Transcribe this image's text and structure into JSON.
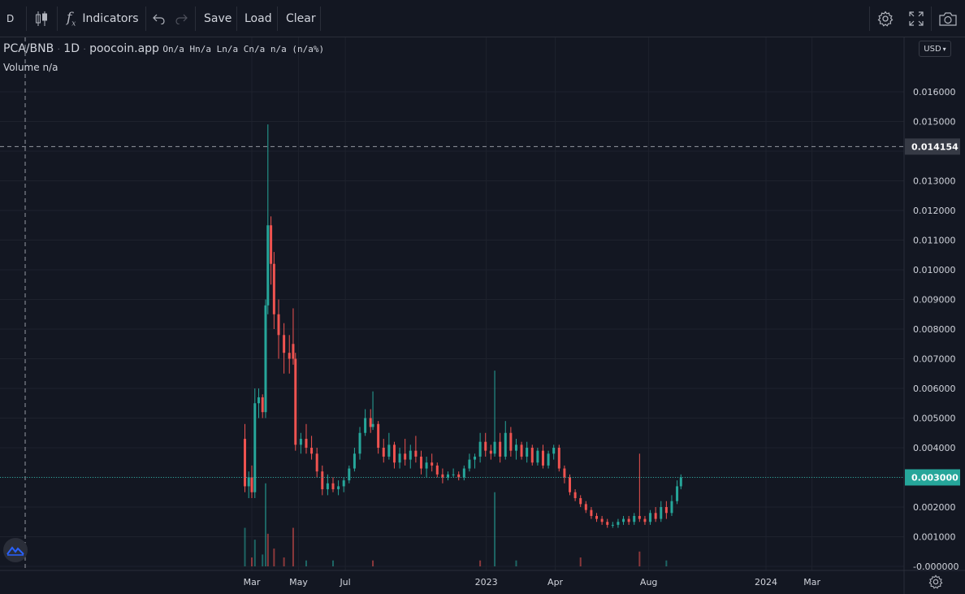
{
  "toolbar": {
    "interval": "D",
    "indicators_label": "Indicators",
    "save_label": "Save",
    "load_label": "Load",
    "clear_label": "Clear"
  },
  "legend": {
    "symbol": "PCA/BNB",
    "interval": "1D",
    "source": "poocoin.app",
    "ohlc": "On/a Hn/a Ln/a Cn/a n/a (n/a%)",
    "volume": "Volume n/a"
  },
  "currency": "USD",
  "crosshair_price": "0.014154",
  "last_price": "0.003000",
  "colors": {
    "background": "#131722",
    "grid": "#1e222d",
    "up": "#26a69a",
    "down": "#ef5350",
    "text": "#d1d4dc",
    "last_price_label": "#26a69a",
    "crosshair_label": "#363a45"
  },
  "chart_data": {
    "type": "candlestick",
    "y_ticks": [
      "0.016000",
      "0.015000",
      "0.014000",
      "0.013000",
      "0.012000",
      "0.011000",
      "0.010000",
      "0.009000",
      "0.008000",
      "0.007000",
      "0.006000",
      "0.005000",
      "0.004000",
      "0.003000",
      "0.002000",
      "0.001000",
      "-0.000000"
    ],
    "ylim": [
      0,
      0.016
    ],
    "x_ticks": [
      "Mar",
      "May",
      "Jul",
      "2023",
      "Apr",
      "Aug",
      "2024",
      "Mar"
    ],
    "series": [
      {
        "kind": "price",
        "points": [
          {
            "x": "2022-02-20",
            "o": 0.0043,
            "h": 0.0048,
            "l": 0.0025,
            "c": 0.0027
          },
          {
            "x": "2022-02-25",
            "o": 0.0027,
            "h": 0.0032,
            "l": 0.0023,
            "c": 0.003
          },
          {
            "x": "2022-03-01",
            "o": 0.003,
            "h": 0.0034,
            "l": 0.0023,
            "c": 0.0025
          },
          {
            "x": "2022-03-05",
            "o": 0.0025,
            "h": 0.006,
            "l": 0.0023,
            "c": 0.0055
          },
          {
            "x": "2022-03-10",
            "o": 0.0055,
            "h": 0.006,
            "l": 0.005,
            "c": 0.0057
          },
          {
            "x": "2022-03-15",
            "o": 0.0057,
            "h": 0.0058,
            "l": 0.005,
            "c": 0.0052
          },
          {
            "x": "2022-03-19",
            "o": 0.0052,
            "h": 0.009,
            "l": 0.005,
            "c": 0.0088
          },
          {
            "x": "2022-03-22",
            "o": 0.0088,
            "h": 0.0149,
            "l": 0.0085,
            "c": 0.0115
          },
          {
            "x": "2022-03-26",
            "o": 0.0115,
            "h": 0.0118,
            "l": 0.0095,
            "c": 0.0102
          },
          {
            "x": "2022-03-30",
            "o": 0.0102,
            "h": 0.0106,
            "l": 0.008,
            "c": 0.0085
          },
          {
            "x": "2022-04-05",
            "o": 0.0085,
            "h": 0.009,
            "l": 0.007,
            "c": 0.0078
          },
          {
            "x": "2022-04-12",
            "o": 0.0078,
            "h": 0.0082,
            "l": 0.0065,
            "c": 0.0072
          },
          {
            "x": "2022-04-19",
            "o": 0.0072,
            "h": 0.0078,
            "l": 0.0065,
            "c": 0.007
          },
          {
            "x": "2022-04-24",
            "o": 0.0075,
            "h": 0.0087,
            "l": 0.0068,
            "c": 0.007
          },
          {
            "x": "2022-04-27",
            "o": 0.007,
            "h": 0.0072,
            "l": 0.0039,
            "c": 0.0041
          },
          {
            "x": "2022-05-04",
            "o": 0.0041,
            "h": 0.0045,
            "l": 0.0038,
            "c": 0.0043
          },
          {
            "x": "2022-05-11",
            "o": 0.0043,
            "h": 0.0048,
            "l": 0.0038,
            "c": 0.004
          },
          {
            "x": "2022-05-18",
            "o": 0.004,
            "h": 0.0044,
            "l": 0.0036,
            "c": 0.0038
          },
          {
            "x": "2022-05-25",
            "o": 0.0038,
            "h": 0.004,
            "l": 0.003,
            "c": 0.0032
          },
          {
            "x": "2022-06-01",
            "o": 0.0032,
            "h": 0.0034,
            "l": 0.0024,
            "c": 0.0026
          },
          {
            "x": "2022-06-08",
            "o": 0.0026,
            "h": 0.0031,
            "l": 0.0024,
            "c": 0.0028
          },
          {
            "x": "2022-06-15",
            "o": 0.0028,
            "h": 0.003,
            "l": 0.0025,
            "c": 0.0026
          },
          {
            "x": "2022-06-22",
            "o": 0.0026,
            "h": 0.0029,
            "l": 0.0024,
            "c": 0.0027
          },
          {
            "x": "2022-06-29",
            "o": 0.0027,
            "h": 0.003,
            "l": 0.0025,
            "c": 0.0029
          },
          {
            "x": "2022-07-06",
            "o": 0.0029,
            "h": 0.0034,
            "l": 0.0028,
            "c": 0.0033
          },
          {
            "x": "2022-07-13",
            "o": 0.0033,
            "h": 0.004,
            "l": 0.0032,
            "c": 0.0038
          },
          {
            "x": "2022-07-20",
            "o": 0.0038,
            "h": 0.0047,
            "l": 0.0036,
            "c": 0.0045
          },
          {
            "x": "2022-07-27",
            "o": 0.0045,
            "h": 0.0053,
            "l": 0.0044,
            "c": 0.005
          },
          {
            "x": "2022-08-03",
            "o": 0.005,
            "h": 0.0053,
            "l": 0.0045,
            "c": 0.0047
          },
          {
            "x": "2022-08-06",
            "o": 0.0047,
            "h": 0.0059,
            "l": 0.0046,
            "c": 0.0048
          },
          {
            "x": "2022-08-13",
            "o": 0.0048,
            "h": 0.0049,
            "l": 0.0038,
            "c": 0.004
          },
          {
            "x": "2022-08-20",
            "o": 0.004,
            "h": 0.0043,
            "l": 0.0035,
            "c": 0.0037
          },
          {
            "x": "2022-08-27",
            "o": 0.0037,
            "h": 0.0045,
            "l": 0.0036,
            "c": 0.0041
          },
          {
            "x": "2022-09-03",
            "o": 0.0041,
            "h": 0.0042,
            "l": 0.0033,
            "c": 0.0035
          },
          {
            "x": "2022-09-10",
            "o": 0.0035,
            "h": 0.004,
            "l": 0.0033,
            "c": 0.0038
          },
          {
            "x": "2022-09-17",
            "o": 0.0038,
            "h": 0.0043,
            "l": 0.0034,
            "c": 0.0036
          },
          {
            "x": "2022-09-24",
            "o": 0.0036,
            "h": 0.0041,
            "l": 0.0033,
            "c": 0.0039
          },
          {
            "x": "2022-10-01",
            "o": 0.0039,
            "h": 0.0044,
            "l": 0.0035,
            "c": 0.0037
          },
          {
            "x": "2022-10-08",
            "o": 0.0037,
            "h": 0.0039,
            "l": 0.0031,
            "c": 0.0033
          },
          {
            "x": "2022-10-15",
            "o": 0.0033,
            "h": 0.0037,
            "l": 0.003,
            "c": 0.0035
          },
          {
            "x": "2022-10-22",
            "o": 0.0035,
            "h": 0.0038,
            "l": 0.0032,
            "c": 0.0034
          },
          {
            "x": "2022-10-29",
            "o": 0.0034,
            "h": 0.0035,
            "l": 0.003,
            "c": 0.0031
          },
          {
            "x": "2022-11-05",
            "o": 0.0031,
            "h": 0.0033,
            "l": 0.0028,
            "c": 0.003
          },
          {
            "x": "2022-11-12",
            "o": 0.003,
            "h": 0.0032,
            "l": 0.0029,
            "c": 0.0031
          },
          {
            "x": "2022-11-19",
            "o": 0.0031,
            "h": 0.0033,
            "l": 0.003,
            "c": 0.0031
          },
          {
            "x": "2022-11-26",
            "o": 0.0031,
            "h": 0.0032,
            "l": 0.0029,
            "c": 0.003
          },
          {
            "x": "2022-12-03",
            "o": 0.003,
            "h": 0.0034,
            "l": 0.0029,
            "c": 0.0033
          },
          {
            "x": "2022-12-10",
            "o": 0.0033,
            "h": 0.0038,
            "l": 0.0032,
            "c": 0.0036
          },
          {
            "x": "2022-12-17",
            "o": 0.0036,
            "h": 0.0038,
            "l": 0.0033,
            "c": 0.0037
          },
          {
            "x": "2022-12-24",
            "o": 0.0037,
            "h": 0.0045,
            "l": 0.0035,
            "c": 0.0042
          },
          {
            "x": "2022-12-31",
            "o": 0.0042,
            "h": 0.0045,
            "l": 0.0037,
            "c": 0.0039
          },
          {
            "x": "2023-01-07",
            "o": 0.0039,
            "h": 0.0041,
            "l": 0.0036,
            "c": 0.0038
          },
          {
            "x": "2023-01-12",
            "o": 0.0038,
            "h": 0.0066,
            "l": 0.0037,
            "c": 0.0042
          },
          {
            "x": "2023-01-19",
            "o": 0.0042,
            "h": 0.0045,
            "l": 0.0035,
            "c": 0.0037
          },
          {
            "x": "2023-01-26",
            "o": 0.0037,
            "h": 0.0049,
            "l": 0.0036,
            "c": 0.0045
          },
          {
            "x": "2023-02-02",
            "o": 0.0045,
            "h": 0.0047,
            "l": 0.0037,
            "c": 0.0039
          },
          {
            "x": "2023-02-09",
            "o": 0.0039,
            "h": 0.0043,
            "l": 0.0036,
            "c": 0.0041
          },
          {
            "x": "2023-02-16",
            "o": 0.0041,
            "h": 0.0042,
            "l": 0.0036,
            "c": 0.0037
          },
          {
            "x": "2023-02-23",
            "o": 0.0037,
            "h": 0.0042,
            "l": 0.0035,
            "c": 0.004
          },
          {
            "x": "2023-03-02",
            "o": 0.004,
            "h": 0.0041,
            "l": 0.0034,
            "c": 0.0035
          },
          {
            "x": "2023-03-09",
            "o": 0.0035,
            "h": 0.004,
            "l": 0.0034,
            "c": 0.0039
          },
          {
            "x": "2023-03-16",
            "o": 0.0039,
            "h": 0.0041,
            "l": 0.0033,
            "c": 0.0034
          },
          {
            "x": "2023-03-23",
            "o": 0.0034,
            "h": 0.0039,
            "l": 0.0033,
            "c": 0.0038
          },
          {
            "x": "2023-03-30",
            "o": 0.0038,
            "h": 0.0041,
            "l": 0.0036,
            "c": 0.004
          },
          {
            "x": "2023-04-06",
            "o": 0.004,
            "h": 0.0041,
            "l": 0.0032,
            "c": 0.0033
          },
          {
            "x": "2023-04-13",
            "o": 0.0033,
            "h": 0.0034,
            "l": 0.0028,
            "c": 0.003
          },
          {
            "x": "2023-04-20",
            "o": 0.003,
            "h": 0.0031,
            "l": 0.0024,
            "c": 0.0025
          },
          {
            "x": "2023-04-27",
            "o": 0.0025,
            "h": 0.0026,
            "l": 0.0022,
            "c": 0.0023
          },
          {
            "x": "2023-05-04",
            "o": 0.0023,
            "h": 0.0024,
            "l": 0.002,
            "c": 0.0021
          },
          {
            "x": "2023-05-11",
            "o": 0.0021,
            "h": 0.0022,
            "l": 0.0018,
            "c": 0.0019
          },
          {
            "x": "2023-05-18",
            "o": 0.0019,
            "h": 0.002,
            "l": 0.0016,
            "c": 0.0017
          },
          {
            "x": "2023-05-25",
            "o": 0.0017,
            "h": 0.0018,
            "l": 0.0015,
            "c": 0.0016
          },
          {
            "x": "2023-06-01",
            "o": 0.0016,
            "h": 0.0017,
            "l": 0.0014,
            "c": 0.0015
          },
          {
            "x": "2023-06-08",
            "o": 0.0015,
            "h": 0.0016,
            "l": 0.0013,
            "c": 0.0014
          },
          {
            "x": "2023-06-15",
            "o": 0.0014,
            "h": 0.0015,
            "l": 0.0013,
            "c": 0.0014
          },
          {
            "x": "2023-06-22",
            "o": 0.0014,
            "h": 0.0016,
            "l": 0.0013,
            "c": 0.0015
          },
          {
            "x": "2023-06-29",
            "o": 0.0015,
            "h": 0.0017,
            "l": 0.0014,
            "c": 0.0016
          },
          {
            "x": "2023-07-06",
            "o": 0.0016,
            "h": 0.0017,
            "l": 0.0014,
            "c": 0.0015
          },
          {
            "x": "2023-07-13",
            "o": 0.0015,
            "h": 0.0018,
            "l": 0.0014,
            "c": 0.0017
          },
          {
            "x": "2023-07-20",
            "o": 0.0017,
            "h": 0.0038,
            "l": 0.0015,
            "c": 0.0016
          },
          {
            "x": "2023-07-27",
            "o": 0.0016,
            "h": 0.0017,
            "l": 0.0014,
            "c": 0.0015
          },
          {
            "x": "2023-08-03",
            "o": 0.0015,
            "h": 0.0019,
            "l": 0.0014,
            "c": 0.0018
          },
          {
            "x": "2023-08-10",
            "o": 0.0018,
            "h": 0.002,
            "l": 0.0015,
            "c": 0.0016
          },
          {
            "x": "2023-08-17",
            "o": 0.0016,
            "h": 0.0022,
            "l": 0.0015,
            "c": 0.002
          },
          {
            "x": "2023-08-24",
            "o": 0.002,
            "h": 0.0022,
            "l": 0.0016,
            "c": 0.0018
          },
          {
            "x": "2023-08-31",
            "o": 0.0018,
            "h": 0.0024,
            "l": 0.0017,
            "c": 0.0022
          },
          {
            "x": "2023-09-07",
            "o": 0.0022,
            "h": 0.0029,
            "l": 0.0021,
            "c": 0.0027
          },
          {
            "x": "2023-09-12",
            "o": 0.0027,
            "h": 0.0031,
            "l": 0.0026,
            "c": 0.003
          }
        ]
      },
      {
        "kind": "volume",
        "points": [
          {
            "x": "2022-02-20",
            "v": 0.0013,
            "up": true
          },
          {
            "x": "2022-03-01",
            "v": 0.0003,
            "up": false
          },
          {
            "x": "2022-03-05",
            "v": 0.0009,
            "up": true
          },
          {
            "x": "2022-03-15",
            "v": 0.0004,
            "up": true
          },
          {
            "x": "2022-03-19",
            "v": 0.0028,
            "up": true
          },
          {
            "x": "2022-03-22",
            "v": 0.0011,
            "up": false
          },
          {
            "x": "2022-03-30",
            "v": 0.0006,
            "up": false
          },
          {
            "x": "2022-04-12",
            "v": 0.0003,
            "up": false
          },
          {
            "x": "2022-04-24",
            "v": 0.0013,
            "up": false
          },
          {
            "x": "2022-05-11",
            "v": 0.0002,
            "up": true
          },
          {
            "x": "2022-06-15",
            "v": 0.0002,
            "up": true
          },
          {
            "x": "2022-08-06",
            "v": 0.0002,
            "up": false
          },
          {
            "x": "2022-12-24",
            "v": 0.0002,
            "up": false
          },
          {
            "x": "2023-01-12",
            "v": 0.0025,
            "up": true
          },
          {
            "x": "2023-02-09",
            "v": 0.0002,
            "up": true
          },
          {
            "x": "2023-05-04",
            "v": 0.0003,
            "up": false
          },
          {
            "x": "2023-07-20",
            "v": 0.0005,
            "up": false
          },
          {
            "x": "2023-08-24",
            "v": 0.0002,
            "up": true
          }
        ]
      }
    ]
  }
}
